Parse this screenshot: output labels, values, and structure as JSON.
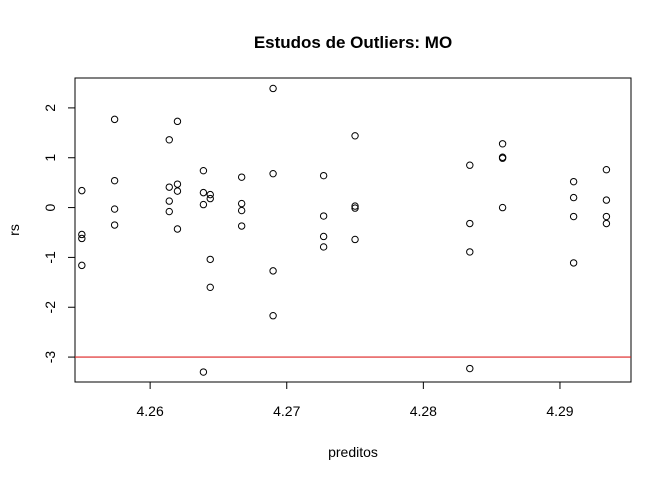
{
  "chart_data": {
    "type": "scatter",
    "title": "Estudos de Outliers:  MO",
    "xlabel": "preditos",
    "ylabel": "rs",
    "xlim": [
      4.2545,
      4.2952
    ],
    "ylim": [
      -3.5,
      2.6
    ],
    "xticks": [
      4.26,
      4.27,
      4.28,
      4.29
    ],
    "xtick_labels": [
      "4.26",
      "4.27",
      "4.28",
      "4.29"
    ],
    "yticks": [
      -3,
      -2,
      -1,
      0,
      1,
      2
    ],
    "ytick_labels": [
      "-3",
      "-2",
      "-1",
      "0",
      "1",
      "2"
    ],
    "grid": false,
    "hline": {
      "y": -3,
      "color": "#dd2222"
    },
    "points": [
      {
        "x": 4.255,
        "y": 0.34
      },
      {
        "x": 4.255,
        "y": -0.54
      },
      {
        "x": 4.255,
        "y": -0.62
      },
      {
        "x": 4.255,
        "y": -1.16
      },
      {
        "x": 4.2574,
        "y": 1.77
      },
      {
        "x": 4.2574,
        "y": 0.54
      },
      {
        "x": 4.2574,
        "y": -0.03
      },
      {
        "x": 4.2574,
        "y": -0.35
      },
      {
        "x": 4.2614,
        "y": 1.36
      },
      {
        "x": 4.2614,
        "y": 0.41
      },
      {
        "x": 4.2614,
        "y": 0.13
      },
      {
        "x": 4.2614,
        "y": -0.08
      },
      {
        "x": 4.262,
        "y": 1.73
      },
      {
        "x": 4.262,
        "y": 0.47
      },
      {
        "x": 4.262,
        "y": 0.33
      },
      {
        "x": 4.262,
        "y": -0.43
      },
      {
        "x": 4.2639,
        "y": 0.74
      },
      {
        "x": 4.2639,
        "y": 0.3
      },
      {
        "x": 4.2639,
        "y": 0.06
      },
      {
        "x": 4.2639,
        "y": -3.3
      },
      {
        "x": 4.2644,
        "y": 0.26
      },
      {
        "x": 4.2644,
        "y": 0.18
      },
      {
        "x": 4.2644,
        "y": -1.04
      },
      {
        "x": 4.2644,
        "y": -1.6
      },
      {
        "x": 4.2667,
        "y": 0.61
      },
      {
        "x": 4.2667,
        "y": 0.08
      },
      {
        "x": 4.2667,
        "y": -0.06
      },
      {
        "x": 4.2667,
        "y": -0.37
      },
      {
        "x": 4.269,
        "y": 2.39
      },
      {
        "x": 4.269,
        "y": 0.68
      },
      {
        "x": 4.269,
        "y": -1.27
      },
      {
        "x": 4.269,
        "y": -2.17
      },
      {
        "x": 4.2727,
        "y": 0.64
      },
      {
        "x": 4.2727,
        "y": -0.17
      },
      {
        "x": 4.2727,
        "y": -0.58
      },
      {
        "x": 4.2727,
        "y": -0.79
      },
      {
        "x": 4.275,
        "y": 1.44
      },
      {
        "x": 4.275,
        "y": 0.03
      },
      {
        "x": 4.275,
        "y": -0.01
      },
      {
        "x": 4.275,
        "y": -0.64
      },
      {
        "x": 4.2834,
        "y": 0.85
      },
      {
        "x": 4.2834,
        "y": -0.32
      },
      {
        "x": 4.2834,
        "y": -0.89
      },
      {
        "x": 4.2834,
        "y": -3.23
      },
      {
        "x": 4.2858,
        "y": 1.28
      },
      {
        "x": 4.2858,
        "y": 1.01
      },
      {
        "x": 4.2858,
        "y": 0.99
      },
      {
        "x": 4.2858,
        "y": 0.0
      },
      {
        "x": 4.291,
        "y": 0.52
      },
      {
        "x": 4.291,
        "y": 0.2
      },
      {
        "x": 4.291,
        "y": -0.18
      },
      {
        "x": 4.291,
        "y": -1.11
      },
      {
        "x": 4.2934,
        "y": 0.76
      },
      {
        "x": 4.2934,
        "y": 0.15
      },
      {
        "x": 4.2934,
        "y": -0.18
      },
      {
        "x": 4.2934,
        "y": -0.32
      }
    ]
  }
}
